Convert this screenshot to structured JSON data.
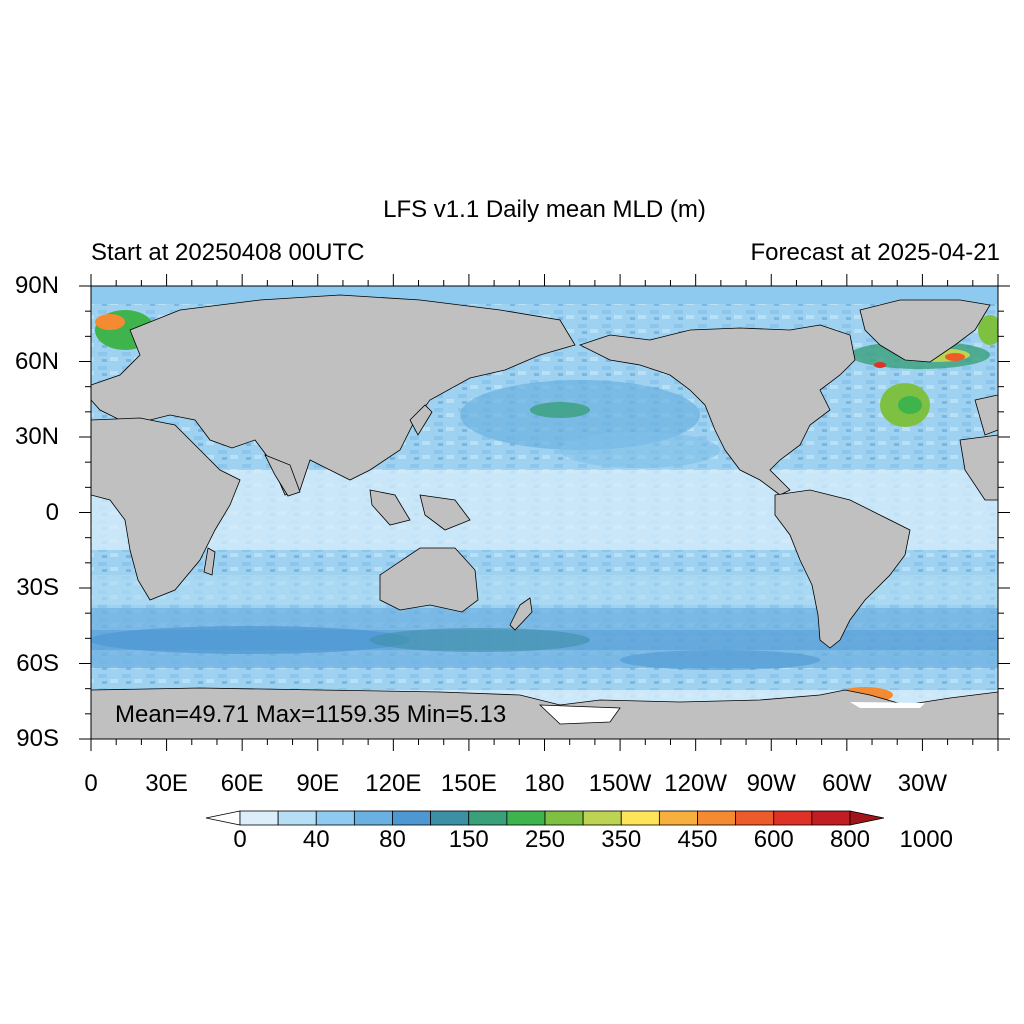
{
  "title": "LFS v1.1 Daily mean MLD (m)",
  "subtitle_left": "Start at 20250408 00UTC",
  "subtitle_right": "Forecast at 2025-04-21",
  "stats": "Mean=49.71  Max=1159.35  Min=5.13",
  "lat_ticks": [
    "90N",
    "60N",
    "30N",
    "0",
    "30S",
    "60S",
    "90S"
  ],
  "lon_ticks": [
    "0",
    "30E",
    "60E",
    "90E",
    "120E",
    "150E",
    "180",
    "150W",
    "120W",
    "90W",
    "60W",
    "30W"
  ],
  "colorbar": {
    "labels": [
      "0",
      "40",
      "80",
      "150",
      "250",
      "350",
      "450",
      "600",
      "800",
      "1000"
    ],
    "colors": [
      "#ffffff",
      "#ddeefb",
      "#b6dff5",
      "#8fcaf0",
      "#6ab0e0",
      "#4d97d2",
      "#3d8fa6",
      "#3aa07a",
      "#40b44c",
      "#7ec142",
      "#bcd451",
      "#fde458",
      "#f7b03d",
      "#f58a33",
      "#ee5b2a",
      "#dd3225",
      "#c21d23",
      "#a11418"
    ]
  },
  "colors": {
    "land": "#c0c0c0",
    "ocean_base": "#a6d8f4",
    "frame": "#000000"
  }
}
